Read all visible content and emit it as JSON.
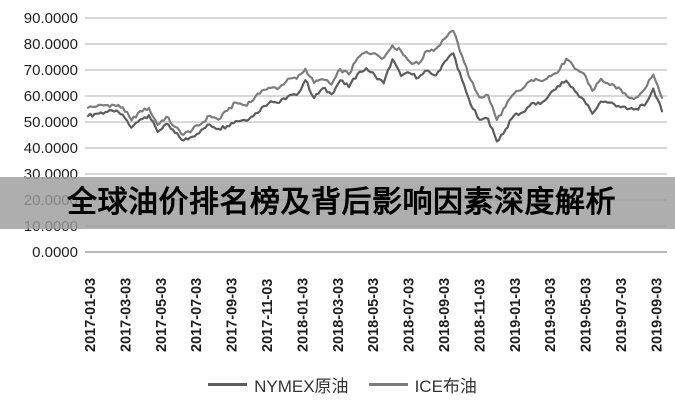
{
  "banner": {
    "title": "全球油价排名榜及背后影响因素深度解析"
  },
  "chart_data": {
    "type": "line",
    "title": "",
    "xlabel": "",
    "ylabel": "",
    "ylim": [
      0,
      90
    ],
    "grid": true,
    "legend_position": "bottom",
    "y_tick_labels": [
      "0.0000",
      "10.0000",
      "20.0000",
      "30.0000",
      "40.0000",
      "50.0000",
      "60.0000",
      "70.0000",
      "80.0000",
      "90.0000"
    ],
    "x_tick_labels": [
      "2017-01-03",
      "2017-03-03",
      "2017-05-03",
      "2017-07-03",
      "2017-09-03",
      "2017-11-03",
      "2018-01-03",
      "2018-03-03",
      "2018-05-03",
      "2018-07-03",
      "2018-09-03",
      "2018-11-03",
      "2019-01-03",
      "2019-03-03",
      "2019-05-03",
      "2019-07-03",
      "2019-09-03"
    ],
    "series": [
      {
        "name": "NYMEX原油",
        "color": "#5d5d5d",
        "values": [
          52.3,
          53.2,
          53.8,
          54.0,
          52.8,
          47.8,
          51.0,
          52.6,
          46.2,
          49.3,
          45.8,
          42.9,
          44.4,
          46.8,
          49.0,
          47.4,
          48.5,
          50.4,
          50.8,
          52.2,
          55.7,
          58.0,
          57.4,
          59.9,
          60.4,
          66.1,
          59.2,
          63.0,
          60.7,
          66.0,
          63.4,
          68.5,
          70.7,
          67.9,
          64.9,
          74.1,
          67.7,
          68.8,
          67.0,
          69.8,
          67.9,
          73.2,
          76.4,
          66.2,
          56.7,
          50.9,
          51.2,
          42.5,
          47.1,
          52.6,
          53.7,
          57.2,
          56.9,
          60.2,
          63.8,
          65.9,
          61.8,
          58.6,
          53.2,
          57.9,
          57.5,
          56.2,
          54.9,
          55.1,
          56.3,
          62.9,
          54.1
        ]
      },
      {
        "name": "ICE布油",
        "color": "#7d7d7d",
        "values": [
          55.5,
          56.0,
          56.5,
          56.5,
          55.6,
          50.6,
          54.2,
          55.4,
          48.9,
          52.0,
          48.1,
          45.1,
          47.1,
          49.2,
          52.4,
          50.9,
          54.3,
          57.5,
          56.5,
          58.4,
          62.1,
          63.1,
          63.2,
          66.6,
          66.6,
          70.5,
          65.0,
          66.4,
          64.4,
          70.3,
          68.3,
          74.6,
          77.0,
          76.4,
          74.6,
          79.4,
          77.3,
          73.1,
          72.4,
          77.4,
          78.2,
          82.0,
          85.0,
          75.5,
          66.1,
          59.5,
          60.3,
          50.8,
          55.9,
          61.0,
          62.8,
          66.1,
          65.9,
          67.7,
          69.0,
          74.3,
          70.4,
          68.7,
          62.0,
          66.6,
          64.2,
          63.3,
          59.9,
          59.3,
          62.6,
          68.2,
          59.3
        ]
      }
    ],
    "colors": {
      "gridline": "#b2b2b2",
      "axis_line": "#8c8c8c",
      "tick_text": "#1f1f1f",
      "banner_bg": "#9c9c9c",
      "banner_text": "#000000"
    }
  }
}
